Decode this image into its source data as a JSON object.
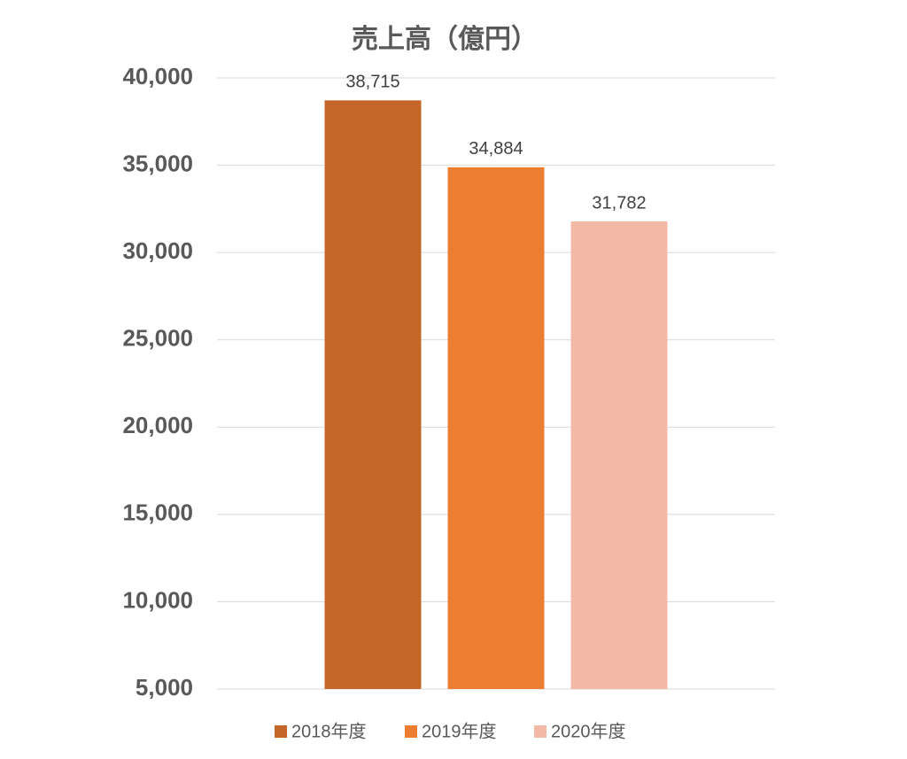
{
  "chart_data": {
    "type": "bar",
    "title": "売上高（億円）",
    "categories": [
      null
    ],
    "series": [
      {
        "name": "2018年度",
        "color": "#c46628",
        "values": [
          38715
        ],
        "value_labels": [
          "38,715"
        ]
      },
      {
        "name": "2019年度",
        "color": "#ed7d31",
        "values": [
          34884
        ],
        "value_labels": [
          "34,884"
        ]
      },
      {
        "name": "2020年度",
        "color": "#f4b9a6",
        "values": [
          31782
        ],
        "value_labels": [
          "31,782"
        ]
      }
    ],
    "ylim": [
      5000,
      40000
    ],
    "yticks": [
      {
        "value": 5000,
        "label": "5,000"
      },
      {
        "value": 10000,
        "label": "10,000"
      },
      {
        "value": 15000,
        "label": "15,000"
      },
      {
        "value": 20000,
        "label": "20,000"
      },
      {
        "value": 25000,
        "label": "25,000"
      },
      {
        "value": 30000,
        "label": "30,000"
      },
      {
        "value": 35000,
        "label": "35,000"
      },
      {
        "value": 40000,
        "label": "40,000"
      }
    ],
    "grid": true,
    "legend": "bottom"
  }
}
